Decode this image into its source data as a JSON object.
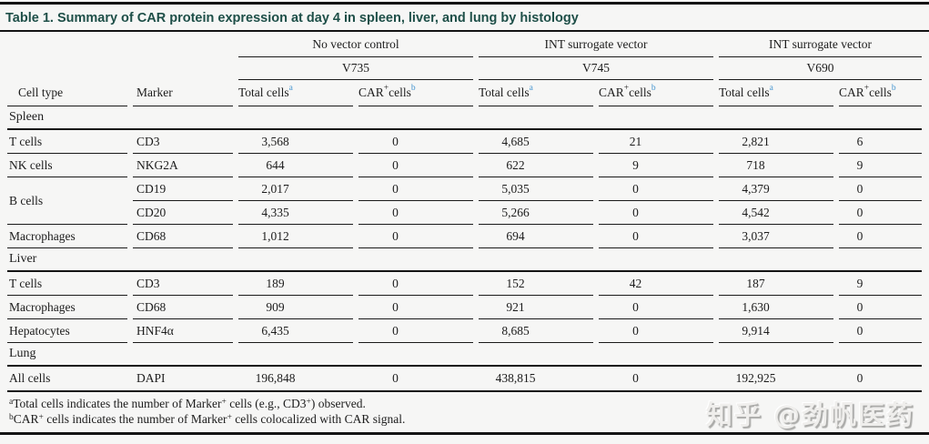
{
  "title": "Table 1. Summary of CAR protein expression at day 4 in spleen, liver, and lung by histology",
  "colors": {
    "title_text": "#1e4f48",
    "superscript_blue": "#4193cf",
    "rule": "#141414",
    "background": "#f6f6f5",
    "body_text": "#1c1c1c"
  },
  "header": {
    "groups": [
      {
        "label": "No vector control",
        "vector": "V735"
      },
      {
        "label": "INT surrogate vector",
        "vector": "V745"
      },
      {
        "label": "INT surrogate vector",
        "vector": "V690"
      }
    ],
    "cell_type_label": "Cell type",
    "marker_label": "Marker",
    "total_cells_label": "Total cells",
    "total_cells_sup": "a",
    "car_label": "CAR",
    "car_plus_sup": "+",
    "cells_word": " cells",
    "car_sup": "b"
  },
  "sections": [
    {
      "name": "Spleen",
      "rows": [
        {
          "cell_type": "T cells",
          "marker": "CD3",
          "values": [
            "3,568",
            "0",
            "4,685",
            "21",
            "2,821",
            "6"
          ]
        },
        {
          "cell_type": "NK cells",
          "marker": "NKG2A",
          "values": [
            "644",
            "0",
            "622",
            "9",
            "718",
            "9"
          ]
        },
        {
          "cell_type": "B cells",
          "marker": "CD19",
          "values": [
            "2,017",
            "0",
            "5,035",
            "0",
            "4,379",
            "0"
          ]
        },
        {
          "cell_type": "",
          "marker": "CD20",
          "values": [
            "4,335",
            "0",
            "5,266",
            "0",
            "4,542",
            "0"
          ]
        },
        {
          "cell_type": "Macrophages",
          "marker": "CD68",
          "values": [
            "1,012",
            "0",
            "694",
            "0",
            "3,037",
            "0"
          ]
        }
      ]
    },
    {
      "name": "Liver",
      "rows": [
        {
          "cell_type": "T cells",
          "marker": "CD3",
          "values": [
            "189",
            "0",
            "152",
            "42",
            "187",
            "9"
          ]
        },
        {
          "cell_type": "Macrophages",
          "marker": "CD68",
          "values": [
            "909",
            "0",
            "921",
            "0",
            "1,630",
            "0"
          ]
        },
        {
          "cell_type": "Hepatocytes",
          "marker": "HNF4α",
          "values": [
            "6,435",
            "0",
            "8,685",
            "0",
            "9,914",
            "0"
          ]
        }
      ]
    },
    {
      "name": "Lung",
      "rows": [
        {
          "cell_type": "All cells",
          "marker": "DAPI",
          "values": [
            "196,848",
            "0",
            "438,815",
            "0",
            "192,925",
            "0"
          ]
        }
      ]
    }
  ],
  "footnotes": {
    "a": {
      "sup": "a",
      "t1": "Total cells indicates the number of Marker",
      "s1": "+",
      "t2": " cells (e.g., CD3",
      "s2": "+",
      "t3": ") observed."
    },
    "b": {
      "sup": "b",
      "t1": "CAR",
      "s1": "+",
      "t2": " cells indicates the number of Marker",
      "s2": "+",
      "t3": " cells colocalized with CAR signal."
    }
  },
  "watermark": "知乎 @劲帆医药"
}
